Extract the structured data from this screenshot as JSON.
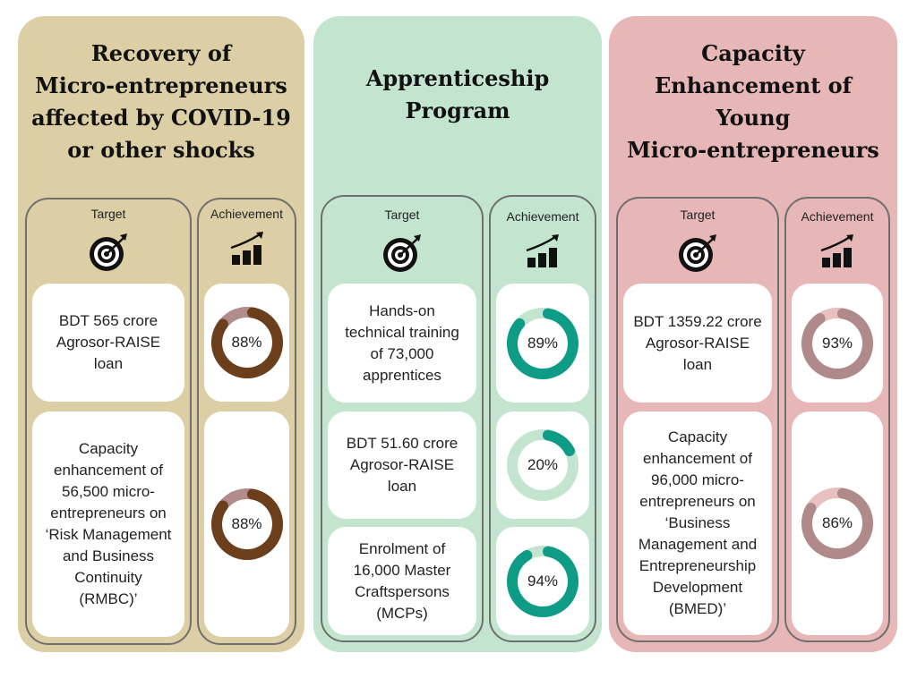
{
  "labels": {
    "target": "Target",
    "achievement": "Achievement"
  },
  "panels": [
    {
      "title": "Recovery of\nMicro-entrepreneurs\naffected by COVID-19\nor other shocks",
      "color": "#dccfa5",
      "arc": "#6b3f1c",
      "track": "#b08c8c",
      "targets": [
        "BDT 565 crore\nAgrosor-RAISE\nloan",
        "Capacity\nenhancement of\n56,500 micro-\nentrepreneurs on\n‘Risk Management\nand Business\nContinuity\n(RMBC)’"
      ],
      "achievements": [
        {
          "value": 88,
          "label": "88%"
        },
        {
          "value": 88,
          "label": "88%"
        }
      ]
    },
    {
      "title": "Apprenticeship\nProgram",
      "color": "#c3e5d0",
      "arc": "#0f9c87",
      "track": "#c3e5d0",
      "targets": [
        "Hands-on\ntechnical training\nof 73,000\napprentices",
        "BDT 51.60 crore\nAgrosor-RAISE\nloan",
        "Enrolment  of\n16,000 Master\nCraftspersons\n(MCPs)"
      ],
      "achievements": [
        {
          "value": 89,
          "label": "89%"
        },
        {
          "value": 20,
          "label": "20%"
        },
        {
          "value": 94,
          "label": "94%"
        }
      ]
    },
    {
      "title": "Capacity\nEnhancement of\nYoung\nMicro-entrepreneurs",
      "color": "#e7b6b6",
      "arc": "#b08a8a",
      "track": "#e8c0c0",
      "targets": [
        "BDT 1359.22 crore\nAgrosor-RAISE\nloan",
        "Capacity\nenhancement of\n96,000 micro-\nentrepreneurs on\n‘Business\nManagement and\nEntrepreneurship\nDevelopment\n(BMED)’"
      ],
      "achievements": [
        {
          "value": 93,
          "label": "93%"
        },
        {
          "value": 86,
          "label": "86%"
        }
      ]
    }
  ]
}
